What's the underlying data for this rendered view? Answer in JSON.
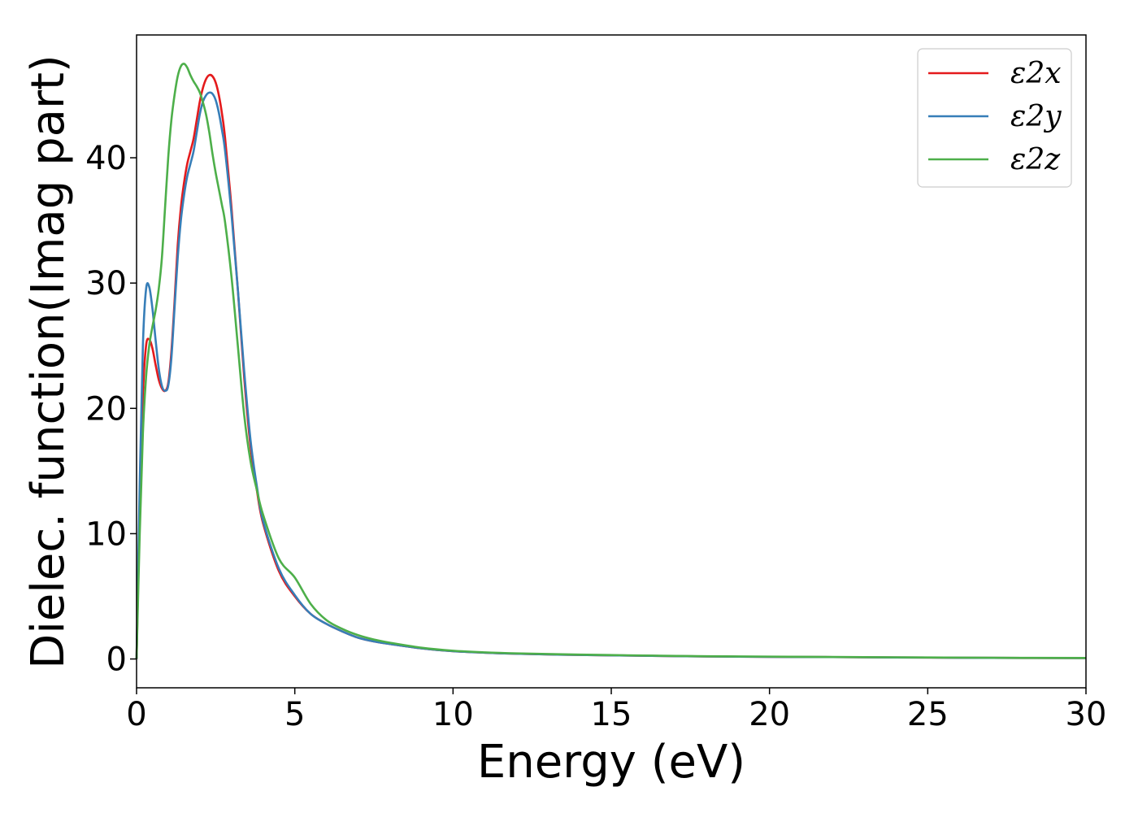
{
  "chart_data": {
    "type": "line",
    "xlabel": "Energy (eV)",
    "ylabel": "Dielec. function(Imag part)",
    "xlim": [
      0,
      30
    ],
    "ylim": [
      -2.3,
      49.8
    ],
    "xticks": [
      0,
      5,
      10,
      15,
      20,
      25,
      30
    ],
    "yticks": [
      0,
      10,
      20,
      30,
      40
    ],
    "grid": false,
    "legend_position": "top-right",
    "series": [
      {
        "name": "ε2x",
        "color": "#e41a1c",
        "x": [
          0,
          0.1,
          0.2,
          0.3,
          0.4,
          0.5,
          0.6,
          0.7,
          0.8,
          0.9,
          1.0,
          1.1,
          1.2,
          1.3,
          1.4,
          1.5,
          1.6,
          1.7,
          1.8,
          1.9,
          2.0,
          2.1,
          2.2,
          2.3,
          2.4,
          2.5,
          2.6,
          2.7,
          2.8,
          3.0,
          3.2,
          3.4,
          3.6,
          3.8,
          4.0,
          4.5,
          5.0,
          5.5,
          6.0,
          6.5,
          7.0,
          7.5,
          8.0,
          9.0,
          10.0,
          11.0,
          12.0,
          14.0,
          16.0,
          18.0,
          20.0,
          22.0,
          25.0,
          28.0,
          30.0
        ],
        "y": [
          0,
          12,
          21,
          25,
          25.5,
          24.8,
          23.5,
          22.3,
          21.6,
          21.4,
          22.0,
          24.5,
          28.5,
          33,
          36,
          38,
          39.5,
          40.5,
          41.5,
          43,
          44.5,
          45.6,
          46.3,
          46.6,
          46.5,
          46,
          45,
          43.5,
          41.5,
          36,
          29.5,
          22.5,
          17,
          13.5,
          10.8,
          7.0,
          5.0,
          3.6,
          2.8,
          2.2,
          1.7,
          1.4,
          1.2,
          0.85,
          0.62,
          0.5,
          0.42,
          0.32,
          0.26,
          0.2,
          0.17,
          0.15,
          0.11,
          0.08,
          0.07
        ]
      },
      {
        "name": "ε2y",
        "color": "#377eb8",
        "x": [
          0,
          0.1,
          0.2,
          0.3,
          0.4,
          0.5,
          0.6,
          0.7,
          0.8,
          0.9,
          1.0,
          1.1,
          1.2,
          1.3,
          1.4,
          1.5,
          1.6,
          1.7,
          1.8,
          1.9,
          2.0,
          2.1,
          2.2,
          2.3,
          2.4,
          2.5,
          2.6,
          2.7,
          2.8,
          3.0,
          3.2,
          3.4,
          3.6,
          3.8,
          4.0,
          4.5,
          5.0,
          5.5,
          6.0,
          6.5,
          7.0,
          7.5,
          8.0,
          9.0,
          10.0,
          11.0,
          12.0,
          14.0,
          16.0,
          18.0,
          20.0,
          22.0,
          25.0,
          28.0,
          30.0
        ],
        "y": [
          0,
          14,
          25,
          29.5,
          29.7,
          28,
          25.5,
          23.2,
          21.8,
          21.4,
          21.8,
          24,
          28,
          32,
          35,
          37,
          38.5,
          39.5,
          40.5,
          42,
          43.5,
          44.5,
          45,
          45.2,
          45.1,
          44.6,
          43.6,
          42.2,
          40.5,
          35.5,
          29.5,
          23,
          17.5,
          13.8,
          11,
          7.2,
          5.1,
          3.6,
          2.8,
          2.2,
          1.7,
          1.4,
          1.2,
          0.85,
          0.62,
          0.5,
          0.42,
          0.32,
          0.26,
          0.2,
          0.17,
          0.15,
          0.11,
          0.08,
          0.07
        ]
      },
      {
        "name": "ε2z",
        "color": "#4daf4a",
        "x": [
          0,
          0.1,
          0.2,
          0.3,
          0.4,
          0.5,
          0.6,
          0.7,
          0.8,
          0.9,
          1.0,
          1.1,
          1.2,
          1.3,
          1.4,
          1.5,
          1.6,
          1.7,
          1.8,
          1.9,
          2.0,
          2.1,
          2.2,
          2.3,
          2.4,
          2.5,
          2.6,
          2.7,
          2.8,
          3.0,
          3.2,
          3.4,
          3.6,
          3.8,
          4.0,
          4.5,
          5.0,
          5.5,
          6.0,
          6.5,
          7.0,
          7.5,
          8.0,
          9.0,
          10.0,
          11.0,
          12.0,
          14.0,
          16.0,
          18.0,
          20.0,
          22.0,
          25.0,
          28.0,
          30.0
        ],
        "y": [
          0,
          10,
          18,
          22.5,
          25,
          26.5,
          27.8,
          29.5,
          32,
          36,
          40,
          43,
          45,
          46.5,
          47.3,
          47.5,
          47.2,
          46.6,
          46.1,
          45.7,
          45.2,
          44.4,
          43.4,
          42,
          40.3,
          38.8,
          37.5,
          36.2,
          34.8,
          30.5,
          25,
          19.5,
          15.8,
          13.5,
          11.5,
          8.0,
          6.5,
          4.4,
          3.1,
          2.4,
          1.9,
          1.55,
          1.3,
          0.9,
          0.66,
          0.53,
          0.45,
          0.35,
          0.28,
          0.22,
          0.19,
          0.16,
          0.12,
          0.09,
          0.08
        ]
      }
    ]
  }
}
